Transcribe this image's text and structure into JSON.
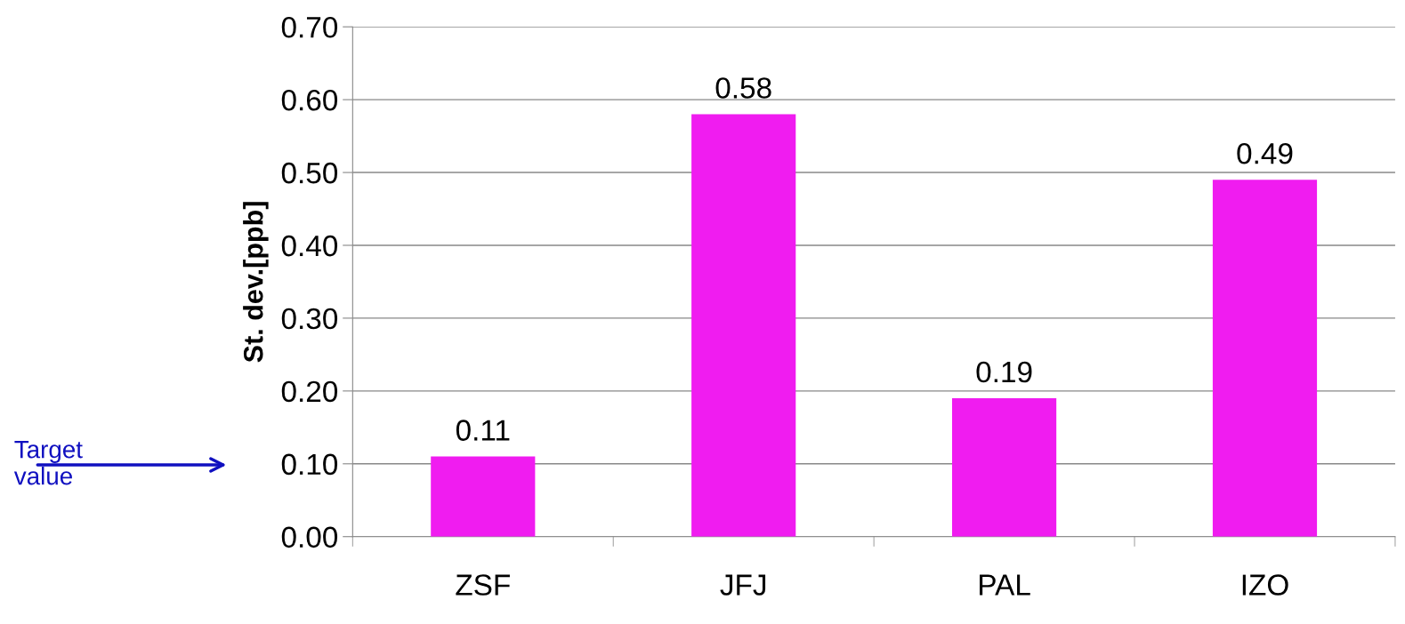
{
  "chart_data": {
    "type": "bar",
    "ylabel": "St. dev.[ppb]",
    "categories": [
      "ZSF",
      "JFJ",
      "PAL",
      "IZO"
    ],
    "values": [
      0.11,
      0.58,
      0.19,
      0.49
    ],
    "color": "#f01cf0",
    "data_labels": true,
    "ylim": [
      0,
      0.7
    ],
    "yticks": [
      {
        "value": 0,
        "label": "0.00"
      },
      {
        "value": 0.1,
        "label": "0.10"
      },
      {
        "value": 0.2,
        "label": "0.20"
      },
      {
        "value": 0.3,
        "label": "0.30"
      },
      {
        "value": 0.4,
        "label": "0.40"
      },
      {
        "value": 0.5,
        "label": "0.50"
      },
      {
        "value": 0.6,
        "label": "0.60"
      },
      {
        "value": 0.7,
        "label": "0.70"
      }
    ],
    "grid": "y",
    "annotations": [
      "Target\nvalue"
    ]
  }
}
